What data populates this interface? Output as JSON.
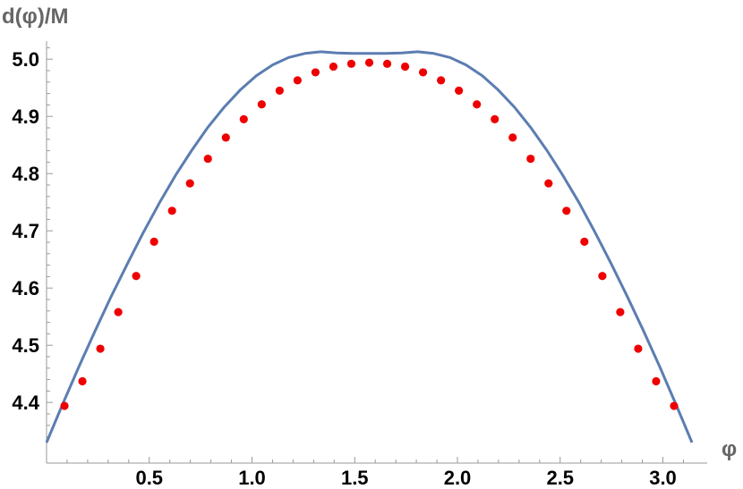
{
  "chart_data": {
    "type": "line",
    "ylabel": "d(φ)/M",
    "xlabel": "φ",
    "xlim": [
      0,
      3.1416
    ],
    "ylim": [
      4.33,
      5.03
    ],
    "x_ticks": [
      0.5,
      1.0,
      1.5,
      2.0,
      2.5,
      3.0
    ],
    "x_tick_labels": [
      "0.5",
      "1.0",
      "1.5",
      "2.0",
      "2.5",
      "3.0"
    ],
    "y_ticks": [
      4.4,
      4.5,
      4.6,
      4.7,
      4.8,
      4.9,
      5.0
    ],
    "y_tick_labels": [
      "4.4",
      "4.5",
      "4.6",
      "4.7",
      "4.8",
      "4.9",
      "5.0"
    ],
    "grid": false,
    "series": [
      {
        "kind": "line",
        "color": "#5B7DB1",
        "x": [
          0.0,
          0.0785,
          0.157,
          0.236,
          0.314,
          0.393,
          0.471,
          0.55,
          0.628,
          0.707,
          0.785,
          0.864,
          0.942,
          1.021,
          1.1,
          1.178,
          1.257,
          1.335,
          1.414,
          1.492,
          1.571,
          1.649,
          1.728,
          1.806,
          1.885,
          1.963,
          2.042,
          2.121,
          2.199,
          2.278,
          2.356,
          2.435,
          2.513,
          2.592,
          2.67,
          2.749,
          2.827,
          2.906,
          2.985,
          3.063,
          3.1416
        ],
        "y": [
          4.33,
          4.397,
          4.462,
          4.525,
          4.585,
          4.642,
          4.697,
          4.749,
          4.797,
          4.841,
          4.881,
          4.916,
          4.946,
          4.971,
          4.99,
          5.003,
          5.01,
          5.013,
          5.011,
          5.01,
          5.01,
          5.01,
          5.011,
          5.013,
          5.01,
          5.003,
          4.99,
          4.971,
          4.946,
          4.916,
          4.881,
          4.841,
          4.797,
          4.749,
          4.697,
          4.642,
          4.585,
          4.525,
          4.462,
          4.397,
          4.33
        ]
      },
      {
        "kind": "scatter",
        "color": "#EE0000",
        "x": [
          0.0873,
          0.1745,
          0.2618,
          0.3491,
          0.4363,
          0.5236,
          0.6109,
          0.6981,
          0.7854,
          0.8727,
          0.9599,
          1.0472,
          1.1345,
          1.2217,
          1.309,
          1.3963,
          1.4835,
          1.5708,
          1.6581,
          1.7453,
          1.8326,
          1.9199,
          2.0071,
          2.0944,
          2.1817,
          2.2689,
          2.3562,
          2.4435,
          2.5307,
          2.618,
          2.7053,
          2.7925,
          2.8798,
          2.9671,
          3.0543
        ],
        "y": [
          4.394,
          4.437,
          4.494,
          4.558,
          4.621,
          4.681,
          4.735,
          4.783,
          4.826,
          4.863,
          4.895,
          4.921,
          4.945,
          4.963,
          4.977,
          4.987,
          4.992,
          4.994,
          4.992,
          4.987,
          4.977,
          4.963,
          4.945,
          4.921,
          4.895,
          4.863,
          4.826,
          4.783,
          4.735,
          4.681,
          4.621,
          4.558,
          4.494,
          4.437,
          4.394
        ]
      }
    ]
  }
}
